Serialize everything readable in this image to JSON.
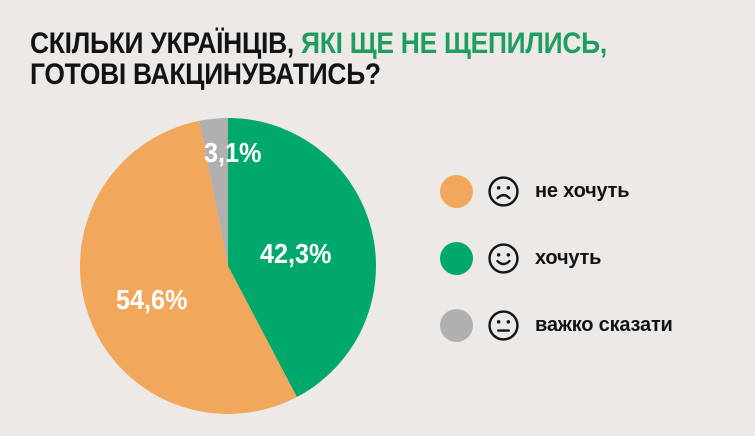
{
  "title": {
    "line1_black": "СКІЛЬКИ УКРАЇНЦІВ, ",
    "line1_green": "ЯКІ ЩЕ НЕ ЩЕПИЛИСЬ,",
    "line2": "ГОТОВІ ВАКЦИНУВАТИСЬ?"
  },
  "colors": {
    "background": "#ECE9E6",
    "title_text": "#131313",
    "title_green": "#1F9D60",
    "label_text": "#FFFFFF",
    "legend_text": "#131313",
    "face_outline": "#131313"
  },
  "chart_data": {
    "type": "pie",
    "title": "СКІЛЬКИ УКРАЇНЦІВ, ЯКІ ЩЕ НЕ ЩЕПИЛИСЬ, ГОТОВІ ВАКЦИНУВАТИСЬ?",
    "start_angle_deg": 0,
    "direction": "clockwise",
    "legend_position": "right",
    "slices": [
      {
        "label": "хочуть",
        "value": 42.3,
        "display": "42,3%",
        "color": "#00A86B"
      },
      {
        "label": "не хочуть",
        "value": 54.6,
        "display": "54,6%",
        "color": "#F2A85C"
      },
      {
        "label": "важко сказати",
        "value": 3.1,
        "display": "3,1%",
        "color": "#B1B0AE"
      }
    ]
  },
  "legend": {
    "items": [
      {
        "label": "не хочуть",
        "color": "#F2A85C",
        "icon": "sad-face-icon"
      },
      {
        "label": "хочуть",
        "color": "#00A86B",
        "icon": "happy-face-icon"
      },
      {
        "label": "важко сказати",
        "color": "#B1B0AE",
        "icon": "neutral-face-icon"
      }
    ]
  }
}
